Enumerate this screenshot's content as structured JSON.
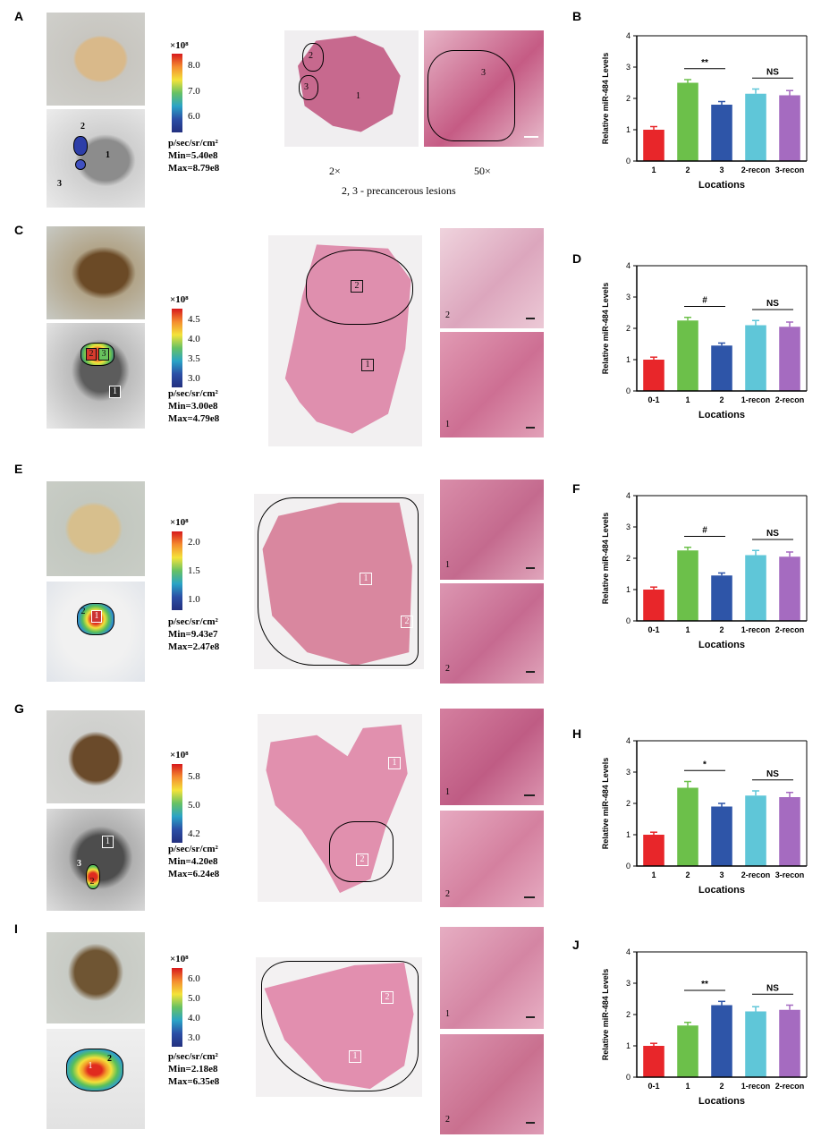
{
  "panel_labels": {
    "A": "A",
    "B": "B",
    "C": "C",
    "D": "D",
    "E": "E",
    "F": "F",
    "G": "G",
    "H": "H",
    "I": "I",
    "J": "J"
  },
  "legend_unit": "p/sec/sr/cm²",
  "colorbar_exponent": "×10⁸",
  "rows": [
    {
      "id": "A",
      "colorbar_ticks": [
        "8.0",
        "7.0",
        "6.0"
      ],
      "min": "Min=5.40e8",
      "max": "Max=8.79e8",
      "ivis_labels": [
        "2",
        "3",
        "1"
      ],
      "he_labels": [
        "2",
        "3",
        "1"
      ],
      "zoom_label": "3",
      "mag_left": "2×",
      "mag_right": "50×",
      "caption": "2, 3 - precancerous lesions"
    },
    {
      "id": "C",
      "colorbar_ticks": [
        "4.5",
        "4.0",
        "3.5",
        "3.0"
      ],
      "min": "Min=3.00e8",
      "max": "Max=4.79e8",
      "ivis_labels": [
        "2",
        "3",
        "1"
      ],
      "he_labels": [
        "2",
        "1"
      ],
      "micro_labels": [
        "2",
        "1"
      ]
    },
    {
      "id": "E",
      "colorbar_ticks": [
        "2.0",
        "1.5",
        "1.0"
      ],
      "min": "Min=9.43e7",
      "max": "Max=2.47e8",
      "ivis_labels": [
        "2",
        "1"
      ],
      "he_labels": [
        "1",
        "2"
      ],
      "micro_labels": [
        "1",
        "2"
      ]
    },
    {
      "id": "G",
      "colorbar_ticks": [
        "5.8",
        "5.0",
        "4.2"
      ],
      "min": "Min=4.20e8",
      "max": "Max=6.24e8",
      "ivis_labels": [
        "1",
        "3",
        "2"
      ],
      "he_labels": [
        "1",
        "2"
      ],
      "micro_labels": [
        "1",
        "2"
      ]
    },
    {
      "id": "I",
      "colorbar_ticks": [
        "6.0",
        "5.0",
        "4.0",
        "3.0"
      ],
      "min": "Min=2.18e8",
      "max": "Max=6.35e8",
      "ivis_labels": [
        "1",
        "2"
      ],
      "he_labels": [
        "2",
        "1"
      ],
      "micro_labels": [
        "1",
        "2"
      ]
    }
  ],
  "chart_data": [
    {
      "panel": "B",
      "type": "bar",
      "categories": [
        "1",
        "2",
        "3",
        "2-recon",
        "3-recon"
      ],
      "values": [
        1.0,
        2.5,
        1.8,
        2.15,
        2.1
      ],
      "errors": [
        0.1,
        0.1,
        0.1,
        0.15,
        0.15
      ],
      "colors": [
        "#e8262a",
        "#6cc04a",
        "#2e55a8",
        "#5fc6d8",
        "#a56bc0"
      ],
      "xlabel": "Locations",
      "ylabel": "Relative miR-484 Levels",
      "ylim": [
        0,
        4
      ],
      "yticks": [
        "0",
        "1",
        "2",
        "3",
        "4"
      ],
      "sig": [
        {
          "from": 1,
          "to": 2,
          "label": "**"
        },
        {
          "from": 3,
          "to": 4,
          "label": "NS"
        }
      ]
    },
    {
      "panel": "D",
      "type": "bar",
      "categories": [
        "0-1",
        "1",
        "2",
        "1-recon",
        "2-recon"
      ],
      "values": [
        1.0,
        2.25,
        1.45,
        2.1,
        2.05
      ],
      "errors": [
        0.08,
        0.1,
        0.08,
        0.15,
        0.15
      ],
      "colors": [
        "#e8262a",
        "#6cc04a",
        "#2e55a8",
        "#5fc6d8",
        "#a56bc0"
      ],
      "xlabel": "Locations",
      "ylabel": "Relative miR-484 Levels",
      "ylim": [
        0,
        4
      ],
      "yticks": [
        "0",
        "1",
        "2",
        "3",
        "4"
      ],
      "sig": [
        {
          "from": 1,
          "to": 2,
          "label": "#"
        },
        {
          "from": 3,
          "to": 4,
          "label": "NS"
        }
      ]
    },
    {
      "panel": "F",
      "type": "bar",
      "categories": [
        "0-1",
        "1",
        "2",
        "1-recon",
        "2-recon"
      ],
      "values": [
        1.0,
        2.25,
        1.45,
        2.1,
        2.05
      ],
      "errors": [
        0.08,
        0.1,
        0.08,
        0.15,
        0.15
      ],
      "colors": [
        "#e8262a",
        "#6cc04a",
        "#2e55a8",
        "#5fc6d8",
        "#a56bc0"
      ],
      "xlabel": "Locations",
      "ylabel": "Relative miR-484 Levels",
      "ylim": [
        0,
        4
      ],
      "yticks": [
        "0",
        "1",
        "2",
        "3",
        "4"
      ],
      "sig": [
        {
          "from": 1,
          "to": 2,
          "label": "#"
        },
        {
          "from": 3,
          "to": 4,
          "label": "NS"
        }
      ]
    },
    {
      "panel": "H",
      "type": "bar",
      "categories": [
        "1",
        "2",
        "3",
        "2-recon",
        "3-recon"
      ],
      "values": [
        1.0,
        2.5,
        1.9,
        2.25,
        2.2
      ],
      "errors": [
        0.08,
        0.2,
        0.1,
        0.15,
        0.15
      ],
      "colors": [
        "#e8262a",
        "#6cc04a",
        "#2e55a8",
        "#5fc6d8",
        "#a56bc0"
      ],
      "xlabel": "Locations",
      "ylabel": "Relative miR-484 Levels",
      "ylim": [
        0,
        4
      ],
      "yticks": [
        "0",
        "1",
        "2",
        "3",
        "4"
      ],
      "sig": [
        {
          "from": 1,
          "to": 2,
          "label": "*"
        },
        {
          "from": 3,
          "to": 4,
          "label": "NS"
        }
      ]
    },
    {
      "panel": "J",
      "type": "bar",
      "categories": [
        "0-1",
        "1",
        "2",
        "1-recon",
        "2-recon"
      ],
      "values": [
        1.0,
        1.65,
        2.3,
        2.1,
        2.15
      ],
      "errors": [
        0.08,
        0.1,
        0.12,
        0.15,
        0.15
      ],
      "colors": [
        "#e8262a",
        "#6cc04a",
        "#2e55a8",
        "#5fc6d8",
        "#a56bc0"
      ],
      "xlabel": "Locations",
      "ylabel": "Relative miR-484 Levels",
      "ylim": [
        0,
        4
      ],
      "yticks": [
        "0",
        "1",
        "2",
        "3",
        "4"
      ],
      "sig": [
        {
          "from": 1,
          "to": 2,
          "label": "**"
        },
        {
          "from": 3,
          "to": 4,
          "label": "NS"
        }
      ]
    }
  ]
}
